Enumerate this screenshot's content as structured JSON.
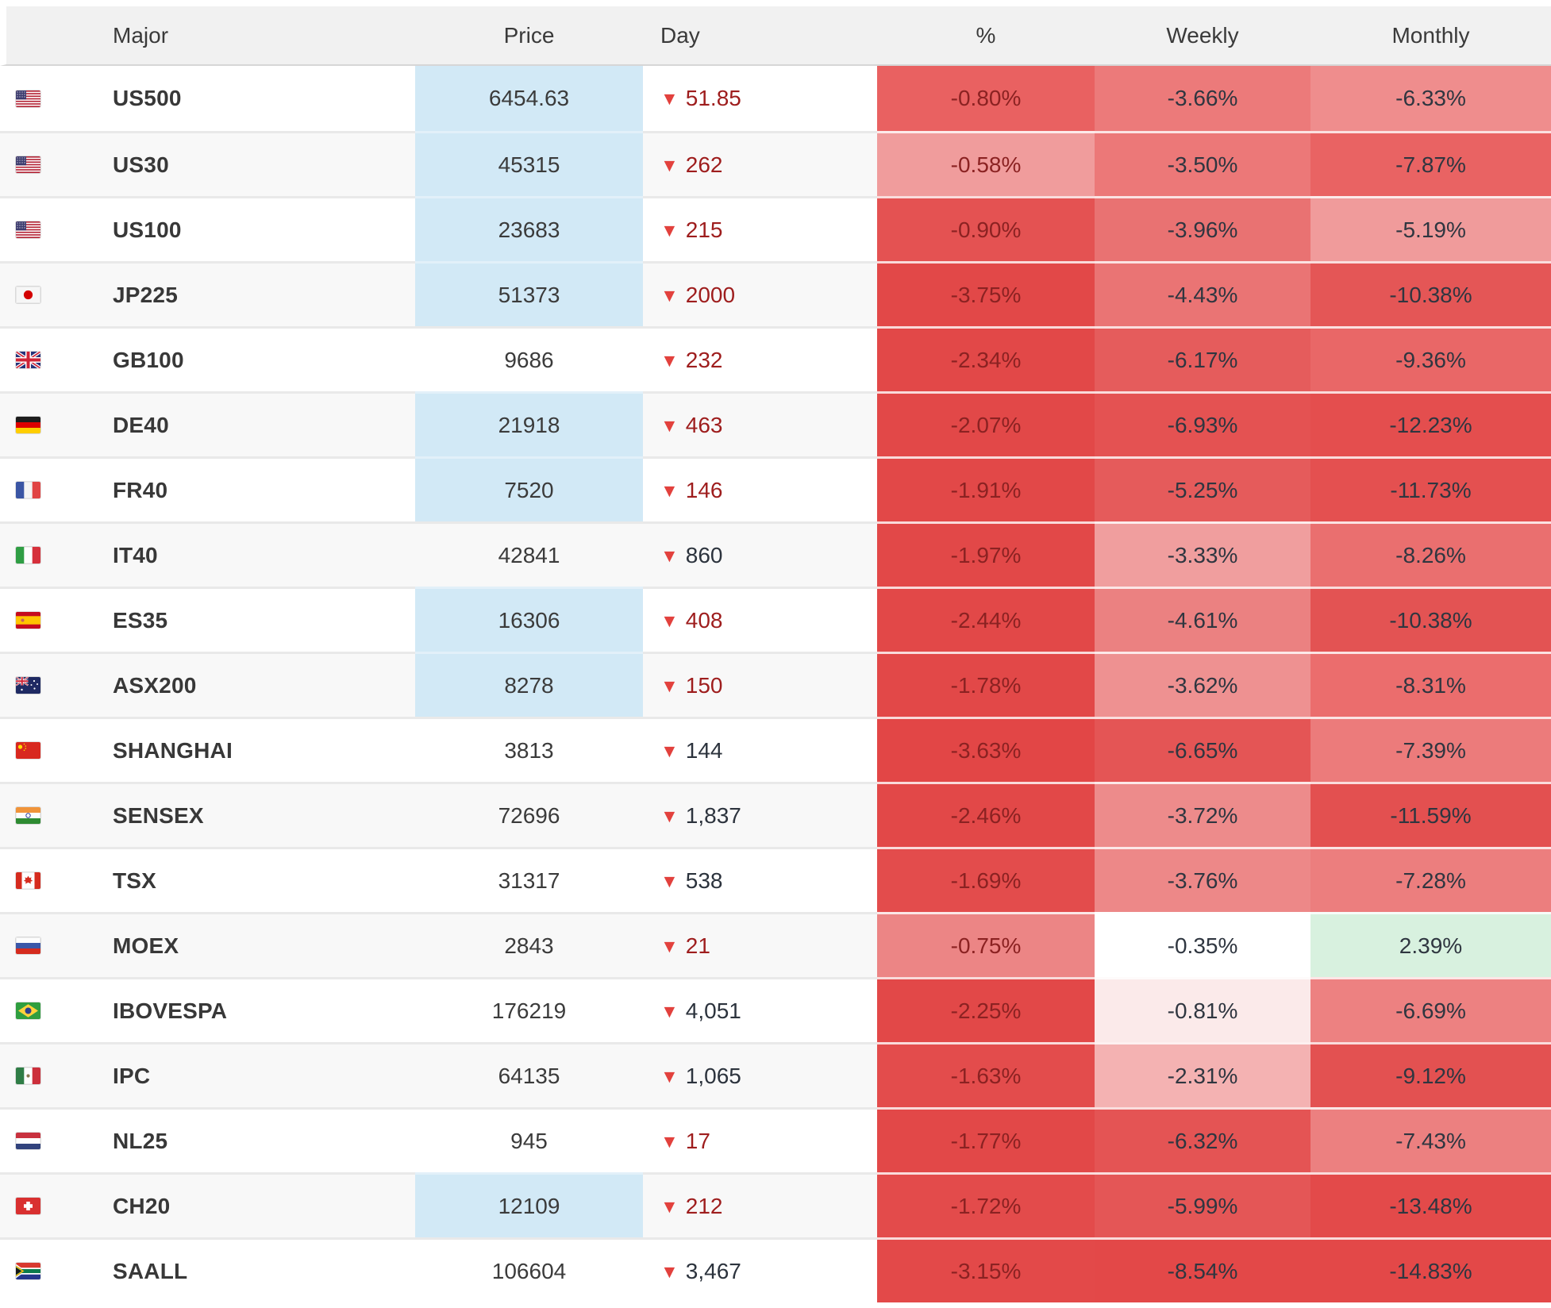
{
  "table": {
    "columns": {
      "flag": "",
      "major": "Major",
      "price": "Price",
      "day": "Day",
      "pct": "%",
      "weekly": "Weekly",
      "monthly": "Monthly"
    },
    "rows": [
      {
        "flag": "us",
        "country": "united-states",
        "symbol": "US500",
        "price": "6454.63",
        "priceHighlight": true,
        "day": "51.85",
        "dayTone": "red",
        "pct": {
          "v": "-0.80%",
          "bg": "#e96161"
        },
        "weekly": {
          "v": "-3.66%",
          "bg": "#ec7a7a"
        },
        "monthly": {
          "v": "-6.33%",
          "bg": "#ef8d8d"
        }
      },
      {
        "flag": "us",
        "country": "united-states",
        "symbol": "US30",
        "price": "45315",
        "priceHighlight": true,
        "day": "262",
        "dayTone": "red",
        "pct": {
          "v": "-0.58%",
          "bg": "#f09c9c"
        },
        "weekly": {
          "v": "-3.50%",
          "bg": "#ec7878"
        },
        "monthly": {
          "v": "-7.87%",
          "bg": "#e96363"
        }
      },
      {
        "flag": "us",
        "country": "united-states",
        "symbol": "US100",
        "price": "23683",
        "priceHighlight": true,
        "day": "215",
        "dayTone": "red",
        "pct": {
          "v": "-0.90%",
          "bg": "#e45252"
        },
        "weekly": {
          "v": "-3.96%",
          "bg": "#e97272"
        },
        "monthly": {
          "v": "-5.19%",
          "bg": "#f09b9b"
        }
      },
      {
        "flag": "jp",
        "country": "japan",
        "symbol": "JP225",
        "price": "51373",
        "priceHighlight": true,
        "day": "2000",
        "dayTone": "red",
        "pct": {
          "v": "-3.75%",
          "bg": "#e24848"
        },
        "weekly": {
          "v": "-4.43%",
          "bg": "#ea7474"
        },
        "monthly": {
          "v": "-10.38%",
          "bg": "#e45656"
        }
      },
      {
        "flag": "gb",
        "country": "united-kingdom",
        "symbol": "GB100",
        "price": "9686",
        "priceHighlight": false,
        "day": "232",
        "dayTone": "red",
        "pct": {
          "v": "-2.34%",
          "bg": "#e24848"
        },
        "weekly": {
          "v": "-6.17%",
          "bg": "#e55c5c"
        },
        "monthly": {
          "v": "-9.36%",
          "bg": "#e96767"
        }
      },
      {
        "flag": "de",
        "country": "germany",
        "symbol": "DE40",
        "price": "21918",
        "priceHighlight": true,
        "day": "463",
        "dayTone": "red",
        "pct": {
          "v": "-2.07%",
          "bg": "#e24848"
        },
        "weekly": {
          "v": "-6.93%",
          "bg": "#e45252"
        },
        "monthly": {
          "v": "-12.23%",
          "bg": "#e44e4e"
        }
      },
      {
        "flag": "fr",
        "country": "france",
        "symbol": "FR40",
        "price": "7520",
        "priceHighlight": true,
        "day": "146",
        "dayTone": "red",
        "pct": {
          "v": "-1.91%",
          "bg": "#e24848"
        },
        "weekly": {
          "v": "-5.25%",
          "bg": "#e55b5b"
        },
        "monthly": {
          "v": "-11.73%",
          "bg": "#e45050"
        }
      },
      {
        "flag": "it",
        "country": "italy",
        "symbol": "IT40",
        "price": "42841",
        "priceHighlight": false,
        "day": "860",
        "dayTone": "dark",
        "pct": {
          "v": "-1.97%",
          "bg": "#e24848"
        },
        "weekly": {
          "v": "-3.33%",
          "bg": "#f09e9e"
        },
        "monthly": {
          "v": "-8.26%",
          "bg": "#ea6f6f"
        }
      },
      {
        "flag": "es",
        "country": "spain",
        "symbol": "ES35",
        "price": "16306",
        "priceHighlight": true,
        "day": "408",
        "dayTone": "red",
        "pct": {
          "v": "-2.44%",
          "bg": "#e24848"
        },
        "weekly": {
          "v": "-4.61%",
          "bg": "#eb8181"
        },
        "monthly": {
          "v": "-10.38%",
          "bg": "#e35353"
        }
      },
      {
        "flag": "au",
        "country": "australia",
        "symbol": "ASX200",
        "price": "8278",
        "priceHighlight": true,
        "day": "150",
        "dayTone": "red",
        "pct": {
          "v": "-1.78%",
          "bg": "#e24848"
        },
        "weekly": {
          "v": "-3.62%",
          "bg": "#ee9191"
        },
        "monthly": {
          "v": "-8.31%",
          "bg": "#eb6d6d"
        }
      },
      {
        "flag": "cn",
        "country": "china",
        "symbol": "SHANGHAI",
        "price": "3813",
        "priceHighlight": false,
        "day": "144",
        "dayTone": "dark",
        "pct": {
          "v": "-3.63%",
          "bg": "#e24646"
        },
        "weekly": {
          "v": "-6.65%",
          "bg": "#e45555"
        },
        "monthly": {
          "v": "-7.39%",
          "bg": "#ec7b7b"
        }
      },
      {
        "flag": "in",
        "country": "india",
        "symbol": "SENSEX",
        "price": "72696",
        "priceHighlight": false,
        "day": "1,837",
        "dayTone": "dark",
        "pct": {
          "v": "-2.46%",
          "bg": "#e24848"
        },
        "weekly": {
          "v": "-3.72%",
          "bg": "#ed8b8b"
        },
        "monthly": {
          "v": "-11.59%",
          "bg": "#e35050"
        }
      },
      {
        "flag": "ca",
        "country": "canada",
        "symbol": "TSX",
        "price": "31317",
        "priceHighlight": false,
        "day": "538",
        "dayTone": "dark",
        "pct": {
          "v": "-1.69%",
          "bg": "#e34c4c"
        },
        "weekly": {
          "v": "-3.76%",
          "bg": "#ed8888"
        },
        "monthly": {
          "v": "-7.28%",
          "bg": "#ec7e7e"
        }
      },
      {
        "flag": "ru",
        "country": "russia",
        "symbol": "MOEX",
        "price": "2843",
        "priceHighlight": false,
        "day": "21",
        "dayTone": "red",
        "pct": {
          "v": "-0.75%",
          "bg": "#ec8585"
        },
        "weekly": {
          "v": "-0.35%",
          "bg": "#ffffff"
        },
        "monthly": {
          "v": "2.39%",
          "bg": "#d8f1df"
        }
      },
      {
        "flag": "br",
        "country": "brazil",
        "symbol": "IBOVESPA",
        "price": "176219",
        "priceHighlight": false,
        "day": "4,051",
        "dayTone": "dark",
        "pct": {
          "v": "-2.25%",
          "bg": "#e24848"
        },
        "weekly": {
          "v": "-0.81%",
          "bg": "#fbeaea"
        },
        "monthly": {
          "v": "-6.69%",
          "bg": "#ed8181"
        }
      },
      {
        "flag": "mx",
        "country": "mexico",
        "symbol": "IPC",
        "price": "64135",
        "priceHighlight": false,
        "day": "1,065",
        "dayTone": "dark",
        "pct": {
          "v": "-1.63%",
          "bg": "#e34c4c"
        },
        "weekly": {
          "v": "-2.31%",
          "bg": "#f4b2b2"
        },
        "monthly": {
          "v": "-9.12%",
          "bg": "#e35151"
        }
      },
      {
        "flag": "nl",
        "country": "netherlands",
        "symbol": "NL25",
        "price": "945",
        "priceHighlight": false,
        "day": "17",
        "dayTone": "red",
        "pct": {
          "v": "-1.77%",
          "bg": "#e24848"
        },
        "weekly": {
          "v": "-6.32%",
          "bg": "#e45454"
        },
        "monthly": {
          "v": "-7.43%",
          "bg": "#ec8080"
        }
      },
      {
        "flag": "ch",
        "country": "switzerland",
        "symbol": "CH20",
        "price": "12109",
        "priceHighlight": true,
        "day": "212",
        "dayTone": "red",
        "pct": {
          "v": "-1.72%",
          "bg": "#e34b4b"
        },
        "weekly": {
          "v": "-5.99%",
          "bg": "#e45656"
        },
        "monthly": {
          "v": "-13.48%",
          "bg": "#e34a4a"
        }
      },
      {
        "flag": "za",
        "country": "south-africa",
        "symbol": "SAALL",
        "price": "106604",
        "priceHighlight": false,
        "day": "3,467",
        "dayTone": "dark",
        "pct": {
          "v": "-3.15%",
          "bg": "#e34949"
        },
        "weekly": {
          "v": "-8.54%",
          "bg": "#e34848"
        },
        "monthly": {
          "v": "-14.83%",
          "bg": "#e34848"
        }
      }
    ]
  },
  "icons": {
    "down_triangle": "▼"
  },
  "colors": {
    "day_negative_text": "#9e1d1d",
    "day_dark_text": "#2c333d",
    "pct_text": "#8b2222",
    "weekly_monthly_text": "#2f3640",
    "triangle_red": "#e2413d",
    "price_highlight_blue": "#d2e9f6",
    "positive_green_bg": "#d8f1df",
    "header_bg": "#f1f1f1",
    "zebra_bg": "#f8f8f8",
    "heat_full_red": "#e24848"
  }
}
